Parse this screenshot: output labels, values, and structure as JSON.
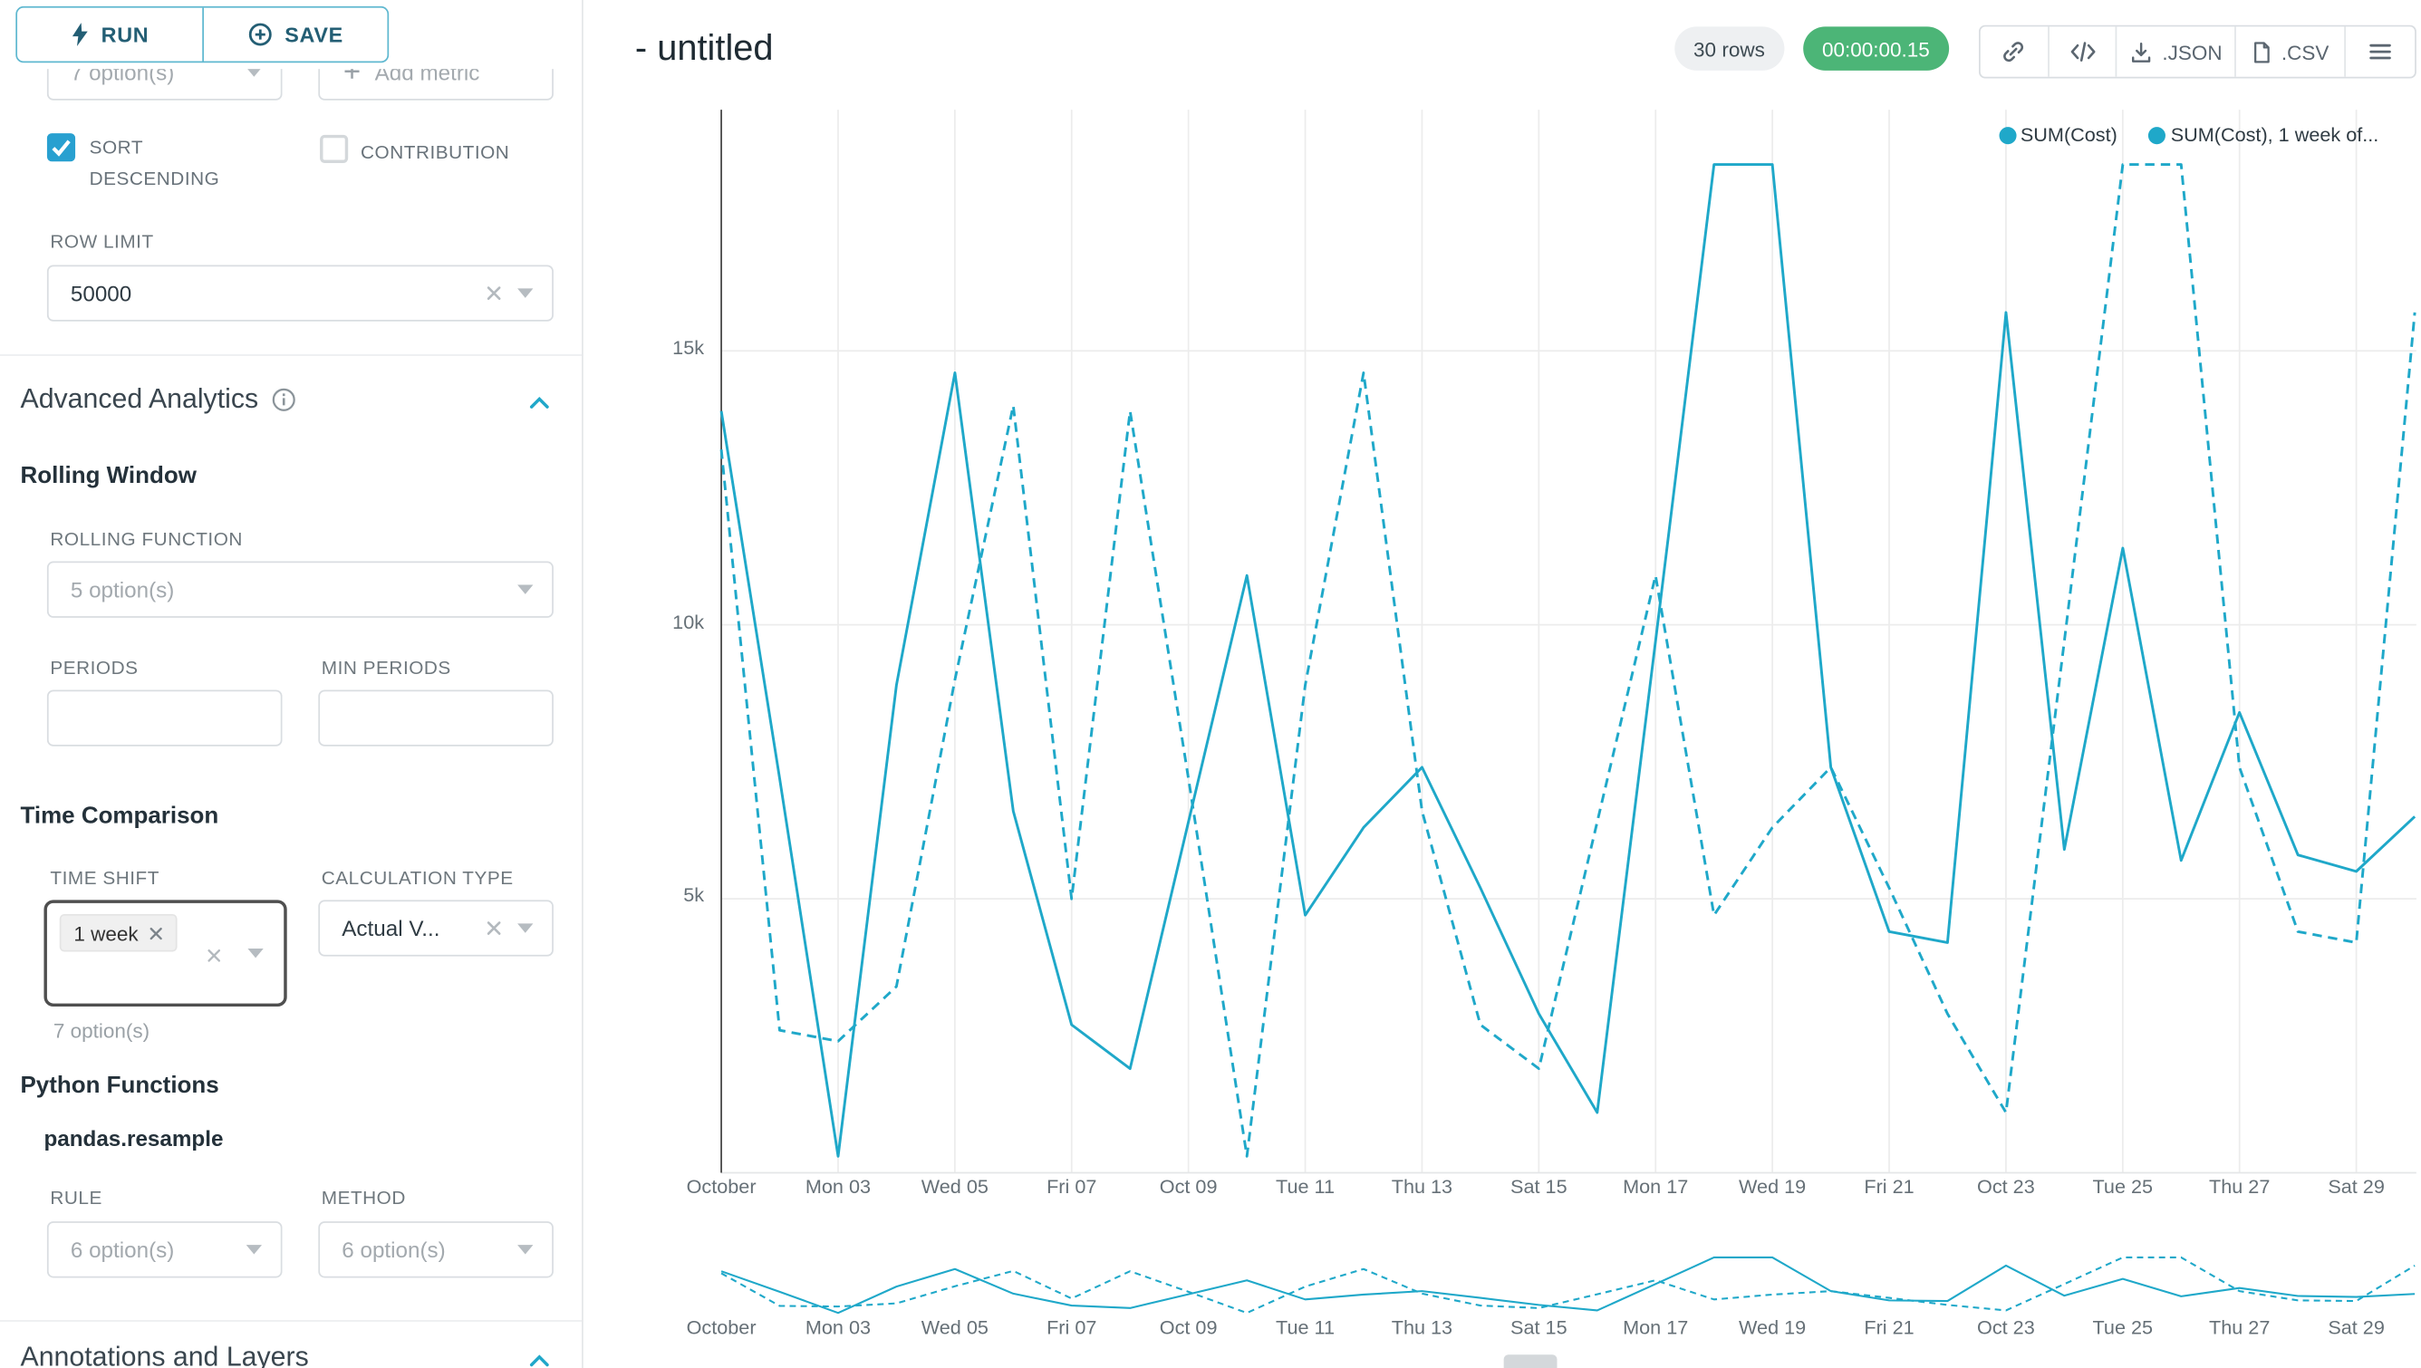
{
  "sidebar": {
    "topbar": {
      "run": "RUN",
      "save": "SAVE"
    },
    "metrics": {
      "placeholder": "7 option(s)",
      "add_metric": "Add metric"
    },
    "checkboxes": {
      "sort_descending": "SORT DESCENDING",
      "contribution": "CONTRIBUTION"
    },
    "row_limit": {
      "label": "ROW LIMIT",
      "value": "50000"
    },
    "advanced_analytics": {
      "title": "Advanced Analytics"
    },
    "rolling_window": {
      "title": "Rolling Window",
      "function_label": "ROLLING FUNCTION",
      "function_placeholder": "5 option(s)",
      "periods_label": "PERIODS",
      "min_periods_label": "MIN PERIODS"
    },
    "time_comparison": {
      "title": "Time Comparison",
      "time_shift_label": "TIME SHIFT",
      "time_shift_value": "1 week",
      "time_shift_hint": "7 option(s)",
      "calculation_type_label": "CALCULATION TYPE",
      "calculation_type_value": "Actual V..."
    },
    "python_functions": {
      "title": "Python Functions",
      "resample_label": "pandas.resample",
      "rule_label": "RULE",
      "rule_placeholder": "6 option(s)",
      "method_label": "METHOD",
      "method_placeholder": "6 option(s)"
    },
    "annotations": {
      "title": "Annotations and Layers"
    }
  },
  "header": {
    "title": "- untitled",
    "rows_badge": "30 rows",
    "timer": "00:00:00.15",
    "export_json": ".JSON",
    "export_csv": ".CSV"
  },
  "chart_data": {
    "type": "line",
    "title": "- untitled",
    "x_description": "daily values, Oct 01 - Oct 30",
    "x_tick_labels": [
      "October",
      "Mon 03",
      "Wed 05",
      "Fri 07",
      "Oct 09",
      "Tue 11",
      "Thu 13",
      "Sat 15",
      "Mon 17",
      "Wed 19",
      "Fri 21",
      "Oct 23",
      "Tue 25",
      "Thu 27",
      "Sat 29"
    ],
    "ylim": [
      0,
      19400
    ],
    "yticks": [
      {
        "value": 5000,
        "label": "5k"
      },
      {
        "value": 10000,
        "label": "10k"
      },
      {
        "value": 15000,
        "label": "15k"
      }
    ],
    "grid": true,
    "legend_position": "top-right",
    "series": [
      {
        "name": "SUM(Cost)",
        "legend_label": "SUM(Cost)",
        "style": "solid",
        "color": "#1fa8c9",
        "values": [
          13900,
          7200,
          300,
          8900,
          14600,
          6600,
          2700,
          1900,
          6400,
          10900,
          4700,
          6300,
          7400,
          5200,
          2900,
          1100,
          9700,
          18400,
          18400,
          7400,
          4400,
          4200,
          15700,
          5900,
          11400,
          5700,
          8400,
          5800,
          5500,
          6500
        ]
      },
      {
        "name": "SUM(Cost), 1 week offset",
        "legend_label": "SUM(Cost), 1 week of...",
        "style": "dashed",
        "color": "#1fa8c9",
        "values": [
          13200,
          2600,
          2400,
          3400,
          9000,
          14000,
          5000,
          13900,
          7200,
          300,
          8900,
          14600,
          6600,
          2700,
          1900,
          6400,
          10900,
          4700,
          6300,
          7400,
          5200,
          2900,
          1100,
          9700,
          18400,
          18400,
          7400,
          4400,
          4200,
          15700
        ]
      }
    ]
  },
  "colors": {
    "accent": "#1fa8c9",
    "timer_bg": "#4cb577",
    "axis": "#444444",
    "grid": "#ececec"
  }
}
